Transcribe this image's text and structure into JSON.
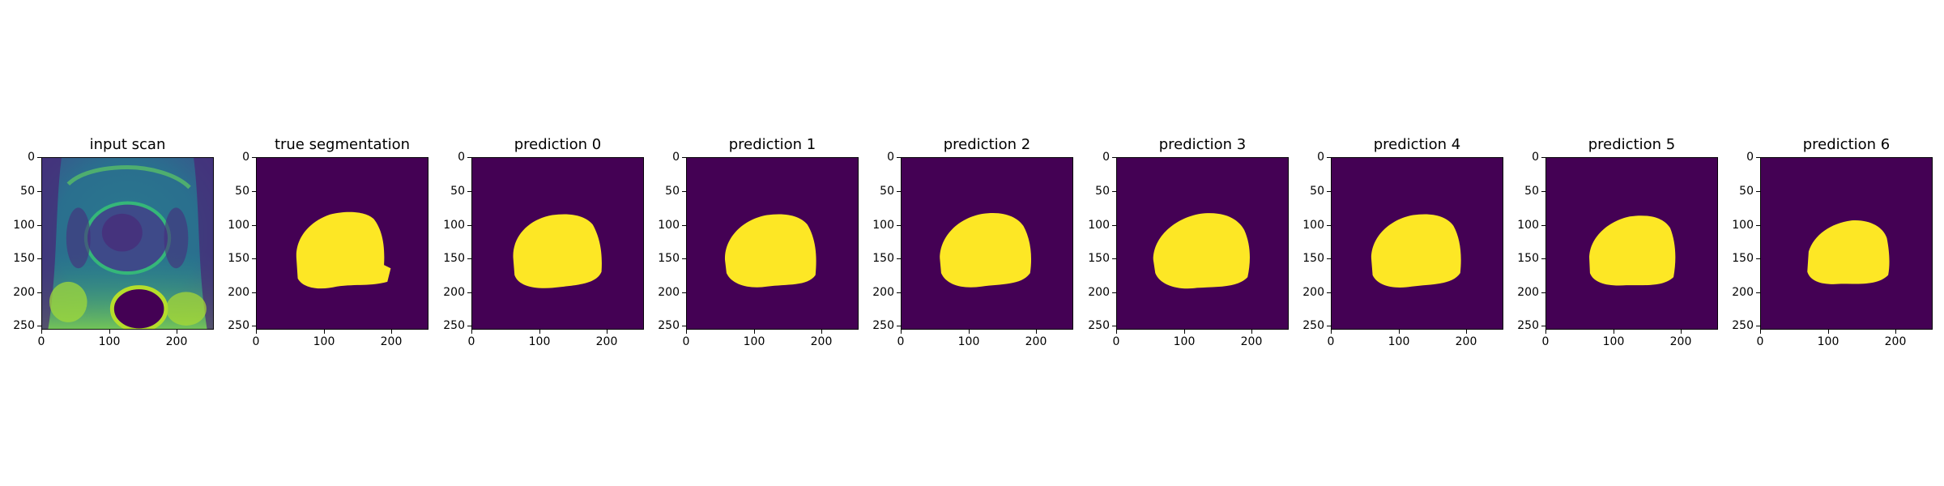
{
  "panels": [
    {
      "title": "input scan",
      "kind": "scan"
    },
    {
      "title": "true segmentation",
      "kind": "mask",
      "variant": 0
    },
    {
      "title": "prediction 0",
      "kind": "mask",
      "variant": 1
    },
    {
      "title": "prediction 1",
      "kind": "mask",
      "variant": 2
    },
    {
      "title": "prediction 2",
      "kind": "mask",
      "variant": 3
    },
    {
      "title": "prediction 3",
      "kind": "mask",
      "variant": 4
    },
    {
      "title": "prediction 4",
      "kind": "mask",
      "variant": 5
    },
    {
      "title": "prediction 5",
      "kind": "mask",
      "variant": 6
    },
    {
      "title": "prediction 6",
      "kind": "mask",
      "variant": 7
    }
  ],
  "axes": {
    "x_ticks": [
      "0",
      "100",
      "200"
    ],
    "y_ticks": [
      "0",
      "50",
      "100",
      "150",
      "200",
      "250"
    ]
  },
  "colors": {
    "background_purple": "#440154",
    "mask_yellow": "#fde725"
  }
}
